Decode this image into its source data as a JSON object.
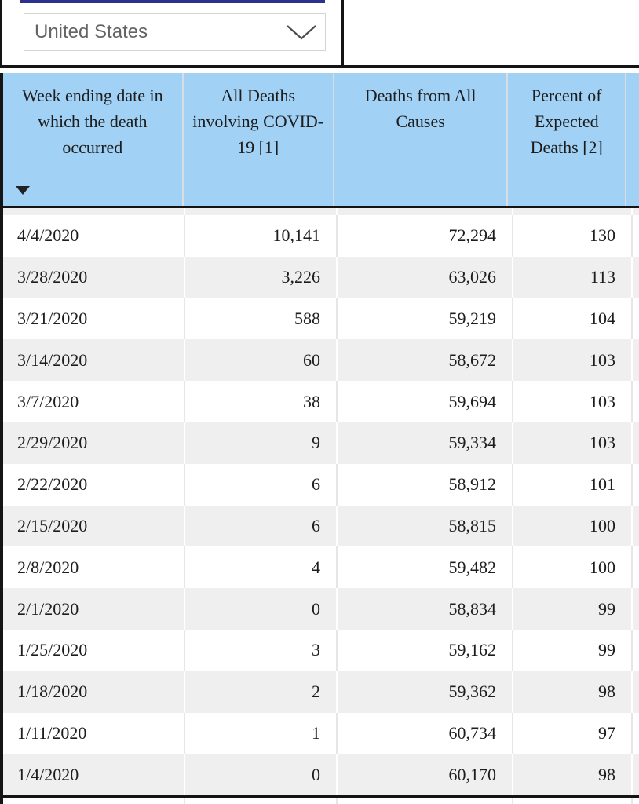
{
  "colors": {
    "accent_underline": "#2d308f",
    "header_bg": "#a1d1f5",
    "row_alt_bg": "#efefef",
    "row_bg": "#ffffff",
    "border_dark": "#141414",
    "cell_text": "#1d1d1d",
    "dropdown_text": "#646464"
  },
  "region_selector": {
    "value": "United States",
    "chevron_icon": "chevron-down"
  },
  "table": {
    "columns": [
      {
        "label": "Week ending date in which the death occurred",
        "align": "left",
        "sort": "desc",
        "sort_icon": "triangle-down"
      },
      {
        "label": "All Deaths involving COVID-19 [1]",
        "align": "right",
        "sort": "none"
      },
      {
        "label": "Deaths from All Causes",
        "align": "right",
        "sort": "none"
      },
      {
        "label": "Percent of Expected Deaths [2]",
        "align": "right",
        "sort": "none"
      }
    ],
    "rows": [
      [
        "4/4/2020",
        "10,141",
        "72,294",
        "130"
      ],
      [
        "3/28/2020",
        "3,226",
        "63,026",
        "113"
      ],
      [
        "3/21/2020",
        "588",
        "59,219",
        "104"
      ],
      [
        "3/14/2020",
        "60",
        "58,672",
        "103"
      ],
      [
        "3/7/2020",
        "38",
        "59,694",
        "103"
      ],
      [
        "2/29/2020",
        "9",
        "59,334",
        "103"
      ],
      [
        "2/22/2020",
        "6",
        "58,912",
        "101"
      ],
      [
        "2/15/2020",
        "6",
        "58,815",
        "100"
      ],
      [
        "2/8/2020",
        "4",
        "59,482",
        "100"
      ],
      [
        "2/1/2020",
        "0",
        "58,834",
        "99"
      ],
      [
        "1/25/2020",
        "3",
        "59,162",
        "99"
      ],
      [
        "1/18/2020",
        "2",
        "59,362",
        "98"
      ],
      [
        "1/11/2020",
        "1",
        "60,734",
        "97"
      ],
      [
        "1/4/2020",
        "0",
        "60,170",
        "98"
      ]
    ]
  }
}
